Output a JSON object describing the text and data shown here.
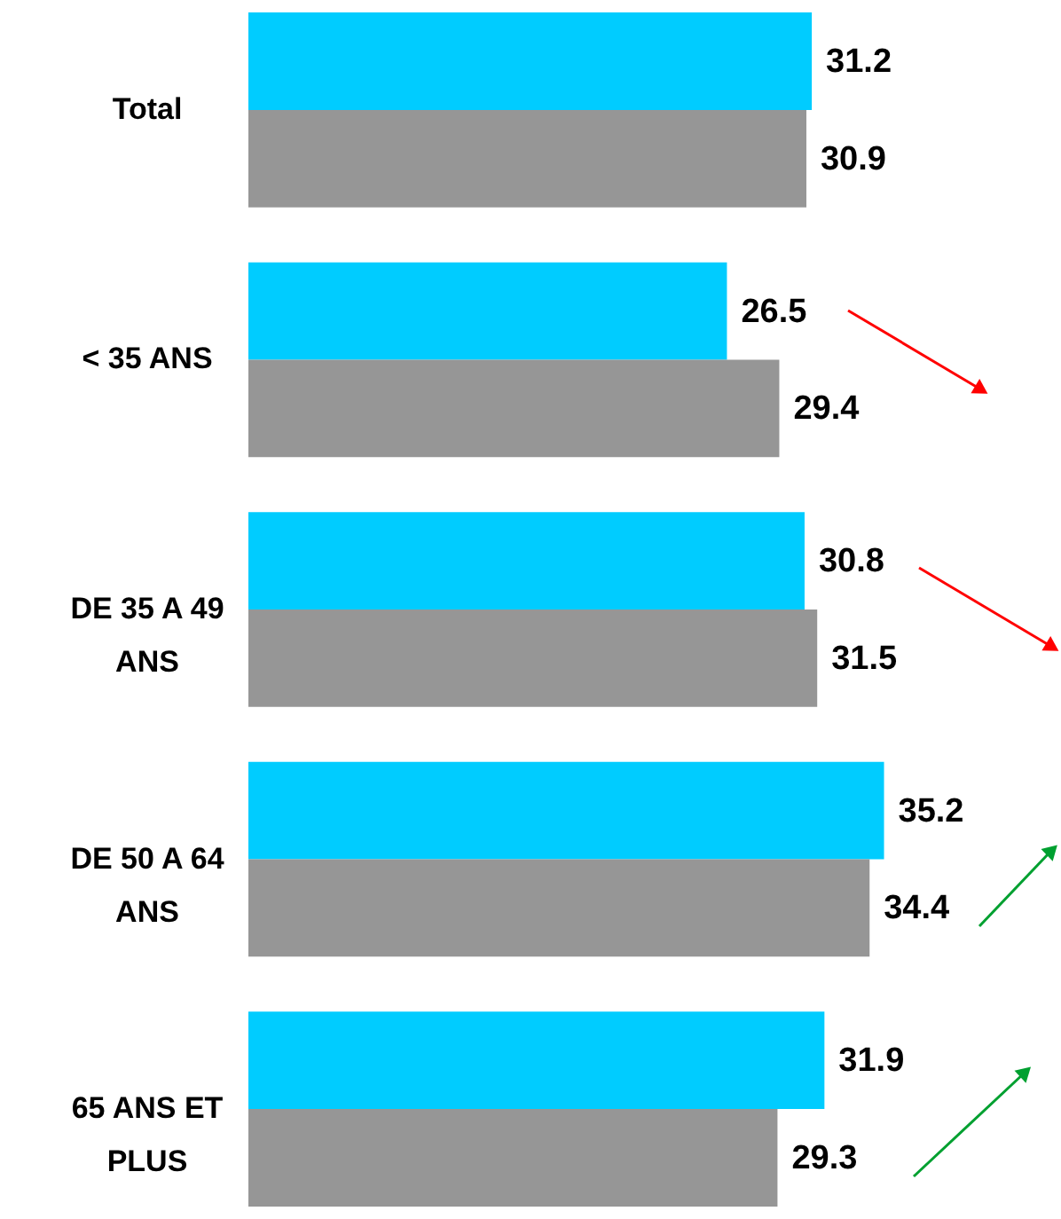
{
  "chart_data": {
    "type": "bar",
    "orientation": "horizontal",
    "categories": [
      "Total",
      "< 35 ANS",
      "DE 35 A 49 ANS",
      "DE 50 A 64 ANS",
      "65 ANS ET PLUS"
    ],
    "series": [
      {
        "color": "#00ccff",
        "values": [
          31.2,
          26.5,
          30.8,
          35.2,
          31.9
        ]
      },
      {
        "color": "#969696",
        "values": [
          30.9,
          29.4,
          31.5,
          34.4,
          29.3
        ]
      }
    ],
    "xlim": [
      0,
      45
    ],
    "data_labels": true,
    "tick_labels": "y"
  }
}
